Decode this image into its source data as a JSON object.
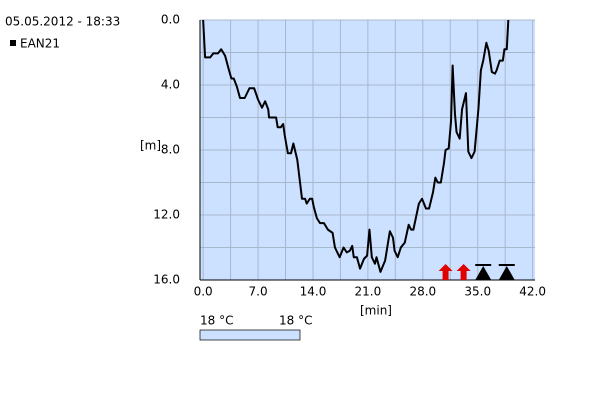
{
  "chart_data": {
    "type": "line",
    "title": "05.05.2012 - 18:33",
    "x_label": "[min]",
    "y_label": "[m]",
    "y_reversed": true,
    "grid": true,
    "minor_grid": true,
    "background": "#cce0ff",
    "xlim": [
      -0.4,
      42.3
    ],
    "ylim": [
      0,
      16
    ],
    "xticks": [
      {
        "value": 0,
        "label": "0.0"
      },
      {
        "value": 7,
        "label": "7.0"
      },
      {
        "value": 14,
        "label": "14.0"
      },
      {
        "value": 21,
        "label": "21.0"
      },
      {
        "value": 28,
        "label": "28.0"
      },
      {
        "value": 35,
        "label": "35.0"
      },
      {
        "value": 42,
        "label": "42.0"
      }
    ],
    "yticks": [
      {
        "value": 0,
        "label": "0.0"
      },
      {
        "value": 4,
        "label": "4.0"
      },
      {
        "value": 8,
        "label": "8.0"
      },
      {
        "value": 12,
        "label": "12.0"
      },
      {
        "value": 16,
        "label": "16.0"
      }
    ],
    "x": [
      0,
      0.25,
      0.9,
      1.3,
      1.9,
      2.3,
      2.8,
      3.3,
      3.6,
      3.9,
      4.3,
      4.7,
      5.3,
      5.9,
      6.5,
      7.0,
      7.5,
      7.9,
      8.3,
      8.4,
      9.3,
      9.5,
      9.9,
      10.2,
      10.4,
      10.8,
      11.2,
      11.5,
      12.0,
      12.3,
      12.6,
      13.0,
      13.2,
      13.6,
      13.9,
      14.1,
      14.5,
      14.9,
      15.4,
      15.9,
      16.2,
      16.5,
      16.8,
      17.4,
      17.9,
      18.3,
      18.7,
      19.0,
      19.2,
      19.6,
      20.0,
      20.5,
      20.9,
      21.2,
      21.5,
      21.9,
      22.1,
      22.6,
      23.2,
      23.8,
      24.2,
      24.4,
      24.8,
      25.2,
      25.7,
      26.2,
      26.5,
      26.8,
      27.5,
      27.9,
      28.4,
      28.8,
      29.3,
      29.6,
      29.9,
      30.3,
      30.7,
      30.9,
      31.3,
      31.6,
      31.8,
      32.1,
      32.3,
      32.7,
      33.0,
      33.5,
      33.8,
      34.2,
      34.6,
      34.9,
      35.1,
      35.4,
      35.7,
      36.1,
      36.4,
      36.8,
      37.2,
      37.4,
      37.8,
      38.2,
      38.4,
      38.7,
      38.9
    ],
    "series": [
      {
        "name": "EAN21",
        "color": "#000000",
        "values": [
          0,
          2.3,
          2.3,
          2.05,
          2.05,
          1.8,
          2.2,
          3.1,
          3.6,
          3.6,
          4.1,
          4.8,
          4.8,
          4.2,
          4.2,
          4.9,
          5.4,
          5.0,
          5.5,
          6.0,
          6.0,
          6.6,
          6.6,
          6.4,
          7.1,
          8.2,
          8.2,
          7.6,
          8.6,
          9.8,
          11.0,
          11.0,
          11.3,
          11.0,
          11.0,
          11.5,
          12.2,
          12.5,
          12.5,
          12.9,
          13.0,
          13.1,
          14.0,
          14.6,
          14.0,
          14.3,
          14.2,
          13.9,
          14.6,
          14.6,
          15.3,
          14.7,
          14.5,
          12.9,
          14.6,
          15.0,
          14.6,
          15.5,
          14.8,
          13.0,
          13.4,
          14.2,
          14.6,
          14.0,
          13.7,
          12.6,
          12.9,
          12.9,
          11.3,
          11.0,
          11.6,
          11.6,
          10.6,
          9.7,
          10.0,
          10.0,
          8.8,
          8.0,
          7.9,
          6.2,
          2.8,
          5.8,
          6.9,
          7.3,
          5.5,
          4.5,
          8.1,
          8.5,
          8.1,
          6.5,
          5.4,
          3.1,
          2.5,
          1.4,
          1.9,
          3.2,
          3.3,
          3.1,
          2.5,
          2.5,
          1.8,
          1.8,
          0.0
        ]
      }
    ],
    "markers": [
      {
        "x": 30.9,
        "color": "#e00000",
        "shape": "arrow"
      },
      {
        "x": 33.2,
        "color": "#e00000",
        "shape": "arrow"
      },
      {
        "x": 35.7,
        "color": "#000000",
        "shape": "triangle"
      },
      {
        "x": 38.7,
        "color": "#000000",
        "shape": "triangle"
      }
    ],
    "color_scale": {
      "labels": [
        "18 °C",
        "18 °C"
      ],
      "color": "#cce0ff"
    }
  }
}
